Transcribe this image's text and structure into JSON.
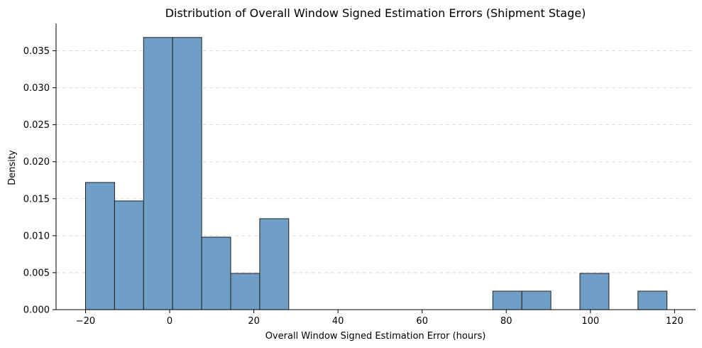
{
  "chart_data": {
    "type": "bar",
    "title": "Distribution of Overall Window Signed Estimation Errors (Shipment Stage)",
    "xlabel": "Overall Window Signed Estimation Error (hours)",
    "ylabel": "Density",
    "xlim": [
      -27,
      125
    ],
    "ylim": [
      0,
      0.0387
    ],
    "x_ticks": [
      -20,
      0,
      20,
      40,
      60,
      80,
      100,
      120
    ],
    "y_ticks": [
      0.0,
      0.005,
      0.01,
      0.015,
      0.02,
      0.025,
      0.03,
      0.035
    ],
    "x_tick_labels": [
      "−20",
      "0",
      "20",
      "40",
      "60",
      "80",
      "100",
      "120"
    ],
    "y_tick_labels": [
      "0.000",
      "0.005",
      "0.010",
      "0.015",
      "0.020",
      "0.025",
      "0.030",
      "0.035"
    ],
    "grid": "y-dashed",
    "bins": [
      {
        "start": -20.0,
        "end": -13.1,
        "value": 0.0172
      },
      {
        "start": -13.1,
        "end": -6.2,
        "value": 0.0147
      },
      {
        "start": -6.2,
        "end": 0.7,
        "value": 0.0368
      },
      {
        "start": 0.7,
        "end": 7.6,
        "value": 0.0368
      },
      {
        "start": 7.6,
        "end": 14.5,
        "value": 0.0098
      },
      {
        "start": 14.5,
        "end": 21.4,
        "value": 0.0049
      },
      {
        "start": 21.4,
        "end": 28.3,
        "value": 0.0123
      },
      {
        "start": 76.8,
        "end": 83.7,
        "value": 0.0025
      },
      {
        "start": 83.7,
        "end": 90.6,
        "value": 0.0025
      },
      {
        "start": 97.5,
        "end": 104.4,
        "value": 0.0049
      },
      {
        "start": 111.3,
        "end": 118.2,
        "value": 0.0025
      }
    ],
    "colors": {
      "bar_fill": "#6f9fc7",
      "bar_edge": "#1f1f1f",
      "grid": "#d9d9d9"
    }
  }
}
